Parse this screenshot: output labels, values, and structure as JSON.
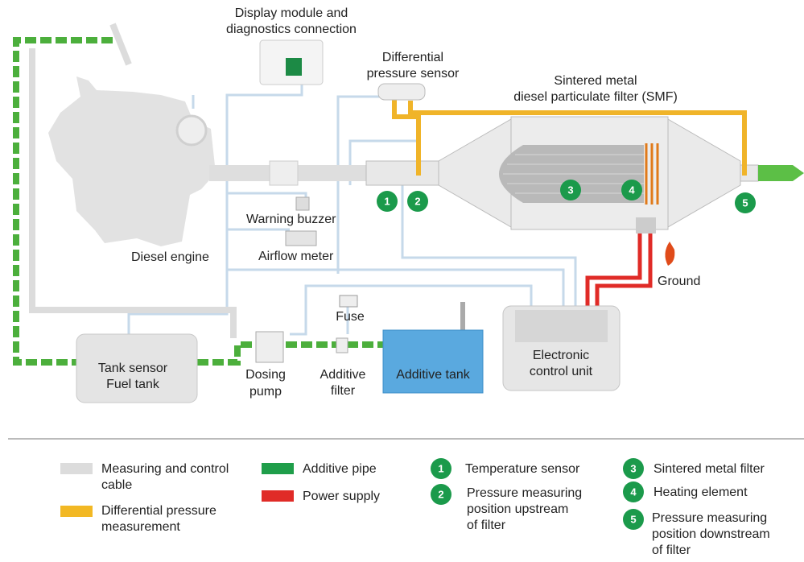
{
  "diagram": {
    "display_module": [
      "Display module and",
      "diagnostics connection"
    ],
    "differential_pressure_sensor": [
      "Differential",
      "pressure sensor"
    ],
    "particulate_filter": [
      "Sintered  metal",
      "diesel particulate filter (SMF)"
    ],
    "warning_buzzer": "Warning buzzer",
    "diesel_engine": "Diesel engine",
    "airflow_meter": "Airflow meter",
    "ground": "Ground",
    "fuse": "Fuse",
    "fuel_tank": [
      "Tank sensor",
      "Fuel tank"
    ],
    "dosing_pump": [
      "Dosing",
      "pump"
    ],
    "additive_filter": [
      "Additive",
      "filter"
    ],
    "additive_tank": "Additive tank",
    "control_unit": [
      "Electronic",
      "control unit"
    ]
  },
  "legend": {
    "lines": [
      {
        "label": [
          "Measuring and control",
          "cable"
        ],
        "color": "#dcdcdc"
      },
      {
        "label": [
          "Differential pressure",
          "measurement"
        ],
        "color": "#f2b824"
      },
      {
        "label": [
          "Additive pipe"
        ],
        "color": "#1f9e4a"
      },
      {
        "label": [
          "Power supply"
        ],
        "color": "#e02b27"
      }
    ],
    "markers": [
      {
        "number": "1",
        "label": [
          "Temperature sensor"
        ]
      },
      {
        "number": "2",
        "label": [
          "Pressure measuring",
          "position upstream",
          "of filter"
        ]
      },
      {
        "number": "3",
        "label": [
          "Sintered metal filter"
        ]
      },
      {
        "number": "4",
        "label": [
          "Heating element"
        ]
      },
      {
        "number": "5",
        "label": [
          "Pressure measuring",
          "position downstream",
          "of filter"
        ]
      }
    ]
  }
}
